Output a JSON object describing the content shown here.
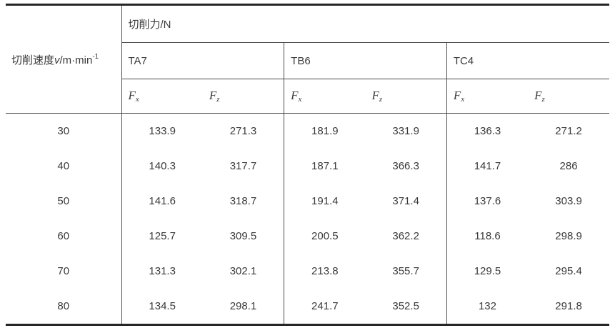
{
  "table": {
    "speed_header": {
      "prefix": "切削速度",
      "symbol": "v",
      "unit": "/m·min",
      "exponent": "-1"
    },
    "force_header": "切削力/N",
    "groups": [
      {
        "name": "TA7"
      },
      {
        "name": "TB6"
      },
      {
        "name": "TC4"
      }
    ],
    "sub_headers": {
      "f": "F",
      "x": "x",
      "z": "z"
    },
    "rows": [
      {
        "speed": "30",
        "values": [
          "133.9",
          "271.3",
          "181.9",
          "331.9",
          "136.3",
          "271.2"
        ]
      },
      {
        "speed": "40",
        "values": [
          "140.3",
          "317.7",
          "187.1",
          "366.3",
          "141.7",
          "286"
        ]
      },
      {
        "speed": "50",
        "values": [
          "141.6",
          "318.7",
          "191.4",
          "371.4",
          "137.6",
          "303.9"
        ]
      },
      {
        "speed": "60",
        "values": [
          "125.7",
          "309.5",
          "200.5",
          "362.2",
          "118.6",
          "298.9"
        ]
      },
      {
        "speed": "70",
        "values": [
          "131.3",
          "302.1",
          "213.8",
          "355.7",
          "129.5",
          "295.4"
        ]
      },
      {
        "speed": "80",
        "values": [
          "134.5",
          "298.1",
          "241.7",
          "352.5",
          "132",
          "291.8"
        ]
      }
    ],
    "colors": {
      "text": "#3a3a3a",
      "rule_thin": "#4d4d4d",
      "rule_thick": "#262626",
      "background": "#ffffff"
    }
  },
  "chart_data": {
    "type": "table",
    "title": "切削力/N",
    "categories": [
      30,
      40,
      50,
      60,
      70,
      80
    ],
    "xlabel": "切削速度v/m·min-1",
    "series": [
      {
        "name": "TA7 Fx",
        "values": [
          133.9,
          140.3,
          141.6,
          125.7,
          131.3,
          134.5
        ]
      },
      {
        "name": "TA7 Fz",
        "values": [
          271.3,
          317.7,
          318.7,
          309.5,
          302.1,
          298.1
        ]
      },
      {
        "name": "TB6 Fx",
        "values": [
          181.9,
          187.1,
          191.4,
          200.5,
          213.8,
          241.7
        ]
      },
      {
        "name": "TB6 Fz",
        "values": [
          331.9,
          366.3,
          371.4,
          362.2,
          355.7,
          352.5
        ]
      },
      {
        "name": "TC4 Fx",
        "values": [
          136.3,
          141.7,
          137.6,
          118.6,
          129.5,
          132
        ]
      },
      {
        "name": "TC4 Fz",
        "values": [
          271.2,
          286,
          303.9,
          298.9,
          295.4,
          291.8
        ]
      }
    ]
  }
}
